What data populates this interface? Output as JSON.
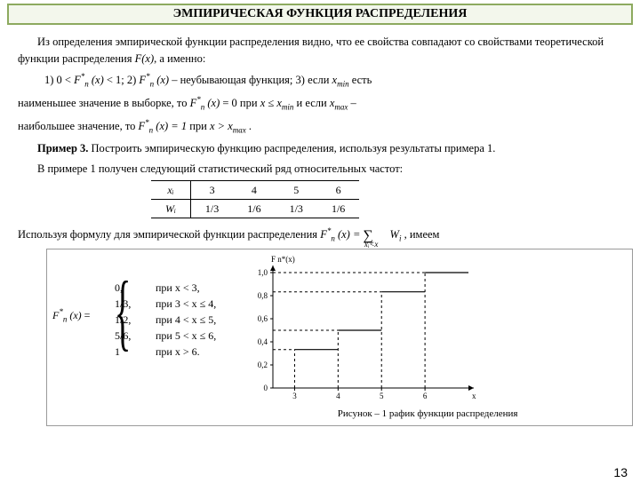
{
  "header": {
    "title": "ЭМПИРИЧЕСКАЯ  ФУНКЦИЯ  РАСПРЕДЕЛЕНИЯ"
  },
  "p1": "Из определения эмпирической функции распределения видно, что ее свойства совпадают со свойствами теоретической функции распределения ",
  "p1b": ", а именно:",
  "line1_a": "1) 0   < ",
  "line1_b": " <  1;      2) ",
  "line1_c": " –  неубывающая  функция;   3) если ",
  "line1_d": " есть",
  "line2_a": "наименьшее   значение    в   выборке,   то   ",
  "line2_b": " = 0   при ",
  "line2_c": "   и   если   ",
  "line2_d": " –",
  "line3_a": "наибольшее значение, то ",
  "line3_b": "  при ",
  "line3_c": " .",
  "example_label": "Пример  3.",
  "example_text": " Построить эмпирическую функцию распределения, используя результаты примера 1.",
  "p4": "В примере 1 получен следующий статистический ряд относительных частот:",
  "table": {
    "row1": [
      "xᵢ",
      "3",
      "4",
      "5",
      "6"
    ],
    "row2": [
      "Wᵢ",
      "1/3",
      "1/6",
      "1/3",
      "1/6"
    ]
  },
  "p5a": "Используя формулу для эмпирической функции распределения ",
  "p5b": " , имеем",
  "piecewise": {
    "label": "F*n(x) = ",
    "rows": [
      {
        "v": "0,",
        "c": "при x < 3,"
      },
      {
        "v": "1/3,",
        "c": "при 3 < x ≤ 4,"
      },
      {
        "v": "1/2,",
        "c": "при 4 < x ≤ 5,"
      },
      {
        "v": "5/6,",
        "c": "при 5 < x ≤ 6,"
      },
      {
        "v": "1",
        "c": "при x > 6."
      }
    ]
  },
  "chart": {
    "y_label": "F n*(x)",
    "y_ticks": [
      "1,0",
      "0,8",
      "0,6",
      "0,4",
      "0,2",
      "0"
    ],
    "x_ticks": [
      "3",
      "4",
      "5",
      "6",
      "x"
    ],
    "steps": [
      {
        "x_from": 3,
        "x_to": 4,
        "y": 0.333
      },
      {
        "x_from": 4,
        "x_to": 5,
        "y": 0.5
      },
      {
        "x_from": 5,
        "x_to": 6,
        "y": 0.833
      },
      {
        "x_from": 6,
        "x_to": 7,
        "y": 1.0
      }
    ],
    "axis_color": "#000000",
    "dash_color": "#000000",
    "caption": "Рисунок – 1 рафик функции распределения"
  },
  "pagenum": "13"
}
